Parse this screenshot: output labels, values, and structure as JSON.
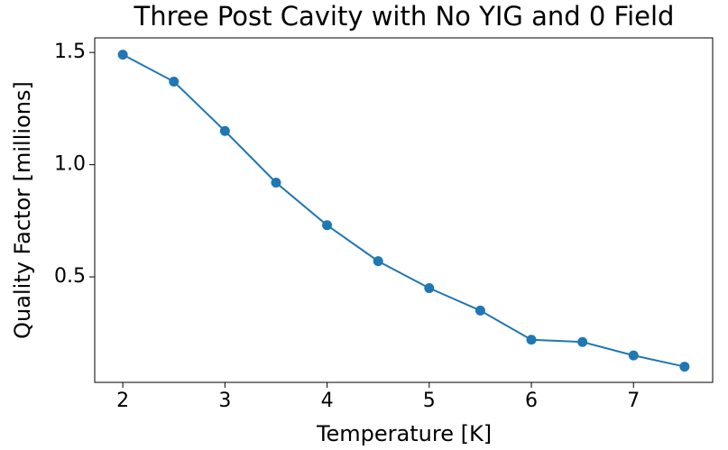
{
  "chart_data": {
    "type": "line",
    "title": "Three Post Cavity with No YIG and 0 Field",
    "x_label": "Temperature [K]",
    "y_label": "Quality Factor [millions]",
    "x": [
      2,
      2.5,
      3,
      3.5,
      4,
      4.5,
      5,
      5.5,
      6,
      6.5,
      7,
      7.5
    ],
    "series": [
      {
        "name": "Quality Factor",
        "color": "#1f77b4",
        "values": [
          1.49,
          1.37,
          1.15,
          0.92,
          0.73,
          0.57,
          0.45,
          0.35,
          0.22,
          0.21,
          0.15,
          0.1
        ]
      }
    ],
    "xlim": [
      1.725,
      7.775
    ],
    "xticks": [
      2,
      3,
      4,
      5,
      6,
      7
    ],
    "ylim": [
      0.03,
      1.565
    ],
    "yticks": [
      0.5,
      {
        "value": 1.0,
        "label": "1.0"
      },
      1.5
    ],
    "grid": false
  }
}
